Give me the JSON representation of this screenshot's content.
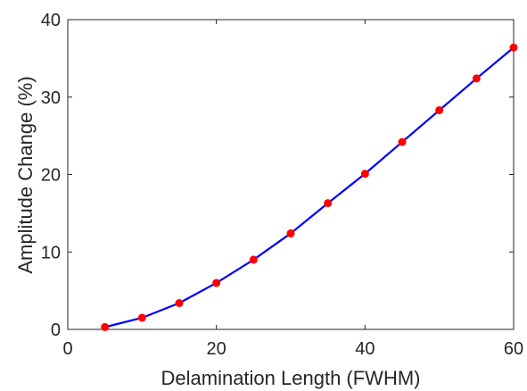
{
  "chart_data": {
    "type": "line",
    "title": "",
    "xlabel": "Delamination Length (FWHM)",
    "ylabel": "Amplitude Change (%)",
    "xlim": [
      0,
      60
    ],
    "ylim": [
      0,
      40
    ],
    "xticks": [
      0,
      20,
      40,
      60
    ],
    "yticks": [
      0,
      10,
      20,
      30,
      40
    ],
    "grid": false,
    "series": [
      {
        "line_color": "#0000ff",
        "marker_color": "#ff0000",
        "x": [
          5,
          10,
          15,
          20,
          25,
          30,
          35,
          40,
          45,
          50,
          55,
          60
        ],
        "y": [
          0.3,
          1.5,
          3.4,
          6.0,
          9.0,
          12.4,
          16.3,
          20.1,
          24.2,
          28.3,
          32.4,
          36.4
        ]
      }
    ]
  }
}
